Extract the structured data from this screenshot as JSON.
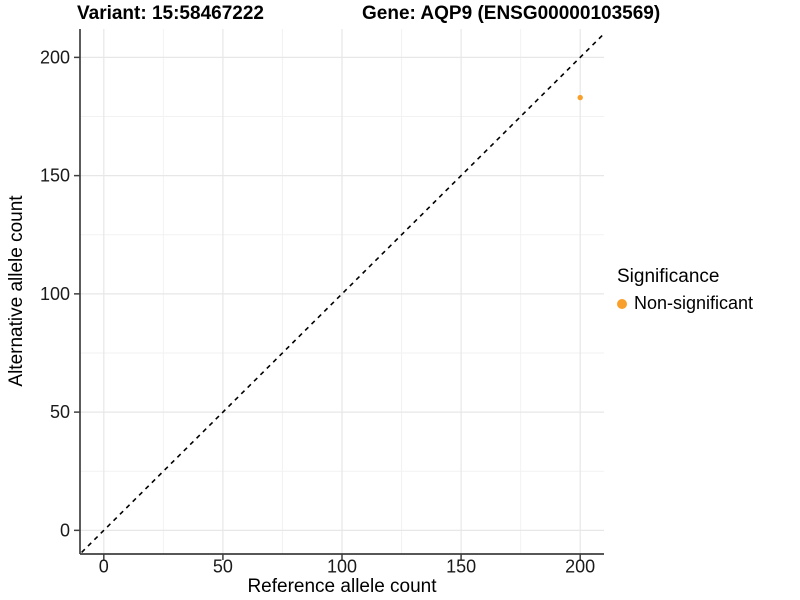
{
  "chart_data": {
    "type": "scatter",
    "title_left": "Variant: 15:58467222",
    "title_right": "Gene: AQP9 (ENSG00000103569)",
    "xlabel": "Reference allele count",
    "ylabel": "Alternative allele count",
    "xlim": [
      -10,
      210
    ],
    "ylim": [
      -10,
      212
    ],
    "x_ticks": [
      0,
      50,
      100,
      150,
      200
    ],
    "y_ticks": [
      0,
      50,
      100,
      150,
      200
    ],
    "minor_ticks_x": [
      25,
      75,
      125,
      175
    ],
    "minor_ticks_y": [
      25,
      75,
      125,
      175
    ],
    "grid": "major and minor, light gray, white panel background",
    "identity_line": {
      "style": "dashed",
      "equation": "y = x",
      "from": -12,
      "to": 214
    },
    "points": [
      {
        "x": 200,
        "y": 183,
        "significance": "Non-significant"
      }
    ],
    "legend": {
      "title": "Significance",
      "position": "right",
      "entries": [
        {
          "label": "Non-significant",
          "color": "#F8A02B"
        }
      ]
    },
    "colors": {
      "point": "#F8A02B",
      "grid_major": "#E7E7E7",
      "grid_minor": "#F2F2F2",
      "axis_line": "#3F3F3F",
      "tick_mark": "#3F3F3F",
      "tick_text": "#1A1A1A",
      "dashed_line": "#000000"
    }
  }
}
